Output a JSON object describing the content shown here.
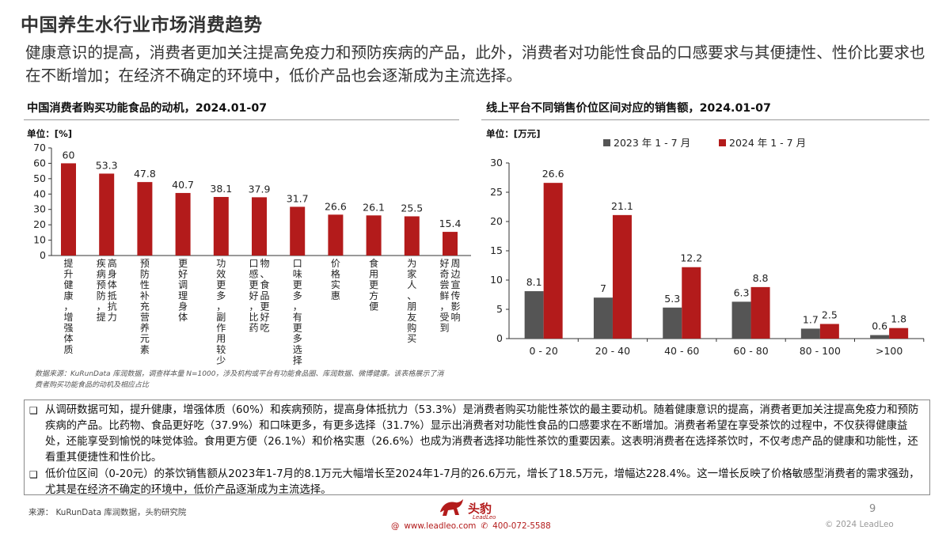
{
  "header": {
    "title": "中国养生水行业市场消费趋势",
    "subtitle": "健康意识的提高，消费者更加关注提高免疫力和预防疾病的产品，此外，消费者对功能性食品的口感要求与其便捷性、性价比要求也在不断增加；在经济不确定的环境中，低价产品也会逐渐成为主流选择。"
  },
  "left_section": {
    "title": "中国消费者购买功能食品的动机，2024.01-07",
    "unit": "单位：[%]",
    "note": "数据来源：KuRunData 库润数据，调查样本量 N=1000，涉及机构或平台有功能食品圈、库润数据、微博健康。该表格展示了消费者购买功能食品的动机及相应占比"
  },
  "right_section": {
    "title": "线上平台不同销售价位区间对应的销售额，2024.01-07",
    "unit": "单位：[万元]"
  },
  "chart_data": [
    {
      "type": "bar",
      "categories": [
        "提升健康，增强体质",
        "疾病预防，提高身体抵抗力",
        "预防性补充营养元素",
        "更好调理身体",
        "功效更多，副作用较少",
        "口感更好，比药物、食品更好吃",
        "口味更多，有更多选择",
        "价格实惠",
        "食用更方便",
        "为家人、朋友购买",
        "好奇尝鲜，受到周边宣传影响"
      ],
      "values": [
        60,
        53.3,
        47.8,
        40.7,
        38.1,
        37.9,
        31.7,
        26.6,
        26.1,
        25.5,
        15.4
      ],
      "value_labels": [
        "60",
        "53.3",
        "47.8",
        "40.7",
        "38.1",
        "37.9",
        "31.7",
        "26.6",
        "26.1",
        "25.5",
        "15.4"
      ],
      "yticks": [
        "0",
        "10",
        "20",
        "30",
        "40",
        "50",
        "60",
        "70"
      ],
      "ylim": [
        0,
        70
      ],
      "grid": false,
      "color": "#b31b1b"
    },
    {
      "type": "bar",
      "categories": [
        "0 - 20",
        "20 - 40",
        "40 - 60",
        "60 - 80",
        "80 - 100",
        ">100"
      ],
      "series": [
        {
          "name": "2023 年 1 - 7 月",
          "values": [
            8.1,
            7,
            5.3,
            6.3,
            1.7,
            0.6
          ],
          "labels": [
            "8.1",
            "7",
            "5.3",
            "6.3",
            "1.7",
            "0.6"
          ],
          "color": "#555555"
        },
        {
          "name": "2024 年 1 - 7 月",
          "values": [
            26.6,
            21.1,
            12.2,
            8.8,
            2.5,
            1.8
          ],
          "labels": [
            "26.6",
            "21.1",
            "12.2",
            "8.8",
            "2.5",
            "1.8"
          ],
          "color": "#b31b1b"
        }
      ],
      "yticks": [
        "0",
        "5",
        "10",
        "15",
        "20",
        "25",
        "30"
      ],
      "ylim": [
        0,
        30
      ],
      "grid": false,
      "legend": "top"
    }
  ],
  "analysis": {
    "bullet_mark": "❑",
    "bullets": [
      "从调研数据可知，提升健康，增强体质（60%）和疾病预防，提高身体抵抗力（53.3%）是消费者购买功能性茶饮的最主要动机。随着健康意识的提高，消费者更加关注提高免疫力和预防疾病的产品。比药物、食品更好吃（37.9%）和口味更多，有更多选择（31.7%）显示出消费者对功能性食品的口感要求在不断增加。消费者希望在享受茶饮的过程中，不仅获得健康益处，还能享受到愉悦的味觉体验。食用更方便（26.1%）和价格实惠（26.6%）也成为消费者选择功能性茶饮的重要因素。这表明消费者在选择茶饮时，不仅考虑产品的健康和功能性，还看重其便捷性和性价比。",
      "低价位区间（0-20元）的茶饮销售额从2023年1-7月的8.1万元大幅增长至2024年1-7月的26.6万元，增长了18.5万元，增幅达228.4%。这一增长反映了价格敏感型消费者的需求强劲，尤其是在经济不确定的环境中，低价产品逐渐成为主流选择。"
    ]
  },
  "footer": {
    "source": "来源：  KuRunData 库润数据，头豹研究院",
    "logo_name": "头豹",
    "logo_sub": "LeadLeo",
    "website": "www.leadleo.com",
    "phone": "400-072-5588",
    "page": "9",
    "copyright": "© 2024 LeadLeo"
  }
}
